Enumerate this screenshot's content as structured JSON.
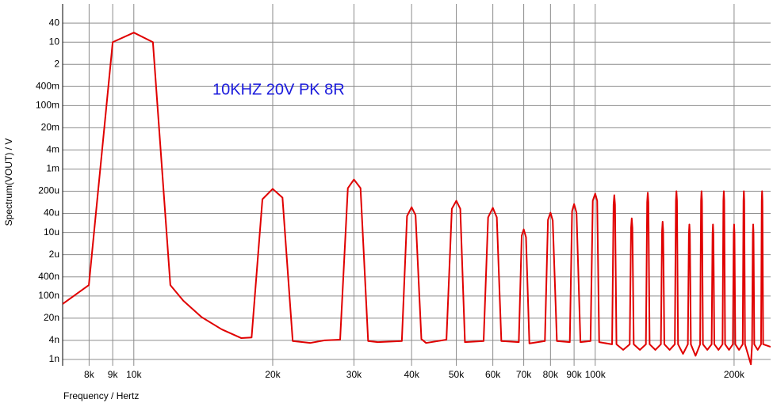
{
  "chart_data": {
    "type": "line",
    "annotation": "10KHZ 20V PK 8R",
    "xlabel": "Frequency / Hertz",
    "ylabel": "Spectrum(VOUT) / V",
    "xlog": true,
    "ylog": true,
    "grid": true,
    "color": "#e00000",
    "xlim": [
      7010,
      240000
    ],
    "ylim": [
      6.3e-10,
      160
    ],
    "xticks": [
      {
        "value": 8000,
        "label": "8k"
      },
      {
        "value": 9000,
        "label": "9k"
      },
      {
        "value": 10000,
        "label": "10k"
      },
      {
        "value": 20000,
        "label": "20k"
      },
      {
        "value": 30000,
        "label": "30k"
      },
      {
        "value": 40000,
        "label": "40k"
      },
      {
        "value": 50000,
        "label": "50k"
      },
      {
        "value": 60000,
        "label": "60k"
      },
      {
        "value": 70000,
        "label": "70k"
      },
      {
        "value": 80000,
        "label": "80k"
      },
      {
        "value": 90000,
        "label": "90k"
      },
      {
        "value": 100000,
        "label": "100k"
      },
      {
        "value": 200000,
        "label": "200k"
      }
    ],
    "yticks": [
      40,
      10,
      2,
      {
        "value": 0.4,
        "label": "400m"
      },
      {
        "value": 0.1,
        "label": "100m"
      },
      {
        "value": 0.02,
        "label": "20m"
      },
      {
        "value": 0.004,
        "label": "4m"
      },
      {
        "value": 0.001,
        "label": "1m"
      },
      {
        "value": 0.0002,
        "label": "200u"
      },
      {
        "value": 4e-05,
        "label": "40u"
      },
      {
        "value": 1e-05,
        "label": "10u"
      },
      {
        "value": 2e-06,
        "label": "2u"
      },
      {
        "value": 4e-07,
        "label": "400n"
      },
      {
        "value": 1e-07,
        "label": "100n"
      },
      {
        "value": 2e-08,
        "label": "20n"
      },
      {
        "value": 4e-09,
        "label": "4n"
      },
      {
        "value": 1e-09,
        "label": "1n"
      }
    ],
    "x": [
      7010,
      7990,
      9000,
      10000,
      11000,
      12000,
      12800,
      14000,
      15500,
      17100,
      18000,
      19000,
      20000,
      21000,
      22100,
      24100,
      25900,
      28000,
      29100,
      30000,
      31000,
      32200,
      33800,
      38100,
      39100,
      40000,
      40800,
      42000,
      43000,
      47600,
      48900,
      50000,
      51000,
      52200,
      57300,
      58600,
      60000,
      61200,
      62600,
      68300,
      69300,
      70000,
      70800,
      72000,
      77800,
      79000,
      80000,
      80900,
      82600,
      88100,
      89100,
      90000,
      91100,
      92900,
      97700,
      98800,
      100000,
      101000,
      102000,
      108800,
      109600,
      110000,
      110400,
      111200,
      115000,
      118800,
      119600,
      120000,
      120400,
      121200,
      125000,
      128800,
      129600,
      130000,
      130400,
      131200,
      135000,
      138800,
      139600,
      140000,
      140400,
      141200,
      145000,
      148800,
      149600,
      150000,
      150400,
      151200,
      155000,
      158800,
      159600,
      160000,
      160400,
      161200,
      165000,
      168800,
      169600,
      170000,
      170400,
      171200,
      175000,
      178800,
      179600,
      180000,
      180400,
      181200,
      185000,
      188800,
      189600,
      190000,
      190400,
      191200,
      195000,
      198800,
      199600,
      200000,
      200400,
      201200,
      205000,
      208800,
      209600,
      210000,
      210400,
      211200,
      217500,
      218800,
      219600,
      220000,
      220400,
      221200,
      225000,
      228800,
      229600,
      230000,
      230400,
      231200,
      240000
    ],
    "values": [
      5.6e-08,
      2.2e-07,
      10,
      20,
      10,
      2.2e-07,
      7.1e-08,
      2.2e-08,
      8.9e-09,
      4.7e-09,
      4.9e-09,
      0.000112,
      0.000237,
      0.000126,
      3.8e-09,
      3.3e-09,
      4e-09,
      4.2e-09,
      0.00025,
      0.00047,
      0.00025,
      3.8e-09,
      3.5e-09,
      3.8e-09,
      3.3e-05,
      6.3e-05,
      3.5e-05,
      4.4e-09,
      3.3e-09,
      4.2e-09,
      5.6e-05,
      0.0001,
      5.6e-05,
      3.5e-09,
      3.8e-09,
      3e-05,
      6e-05,
      3e-05,
      3.8e-09,
      3.5e-09,
      7.9e-06,
      1.26e-05,
      7.1e-06,
      3.2e-09,
      3.8e-09,
      2.5e-05,
      4.2e-05,
      2.4e-05,
      3.8e-09,
      3.5e-09,
      4.7e-05,
      7.9e-05,
      4.2e-05,
      3.5e-09,
      3.8e-09,
      0.0001,
      0.000168,
      0.0001,
      3.5e-09,
      3e-09,
      7.5e-05,
      0.00015,
      7.5e-05,
      3e-09,
      2e-09,
      3e-09,
      1.4e-05,
      2.8e-05,
      1.4e-05,
      3e-09,
      2e-09,
      3e-09,
      9e-05,
      0.00018,
      9e-05,
      3e-09,
      2e-09,
      3e-09,
      1.1e-05,
      2.2e-05,
      1.1e-05,
      3e-09,
      2e-09,
      3e-09,
      0.0001,
      0.0002,
      0.0001,
      3e-09,
      1.5e-09,
      3e-09,
      9e-06,
      1.8e-05,
      9e-06,
      3e-09,
      1.3e-09,
      3e-09,
      0.0001,
      0.0002,
      0.0001,
      3e-09,
      2e-09,
      3e-09,
      9e-06,
      1.8e-05,
      9e-06,
      3e-09,
      2e-09,
      3e-09,
      0.0001,
      0.0002,
      0.0001,
      3e-09,
      2e-09,
      3e-09,
      9e-06,
      1.8e-05,
      9e-06,
      3e-09,
      2e-09,
      3e-09,
      0.0001,
      0.0002,
      0.0001,
      3e-09,
      7e-10,
      3e-09,
      9e-06,
      1.8e-05,
      9e-06,
      3e-09,
      2e-09,
      3e-09,
      0.0001,
      0.0002,
      0.0001,
      3e-09,
      2.5e-09
    ]
  }
}
